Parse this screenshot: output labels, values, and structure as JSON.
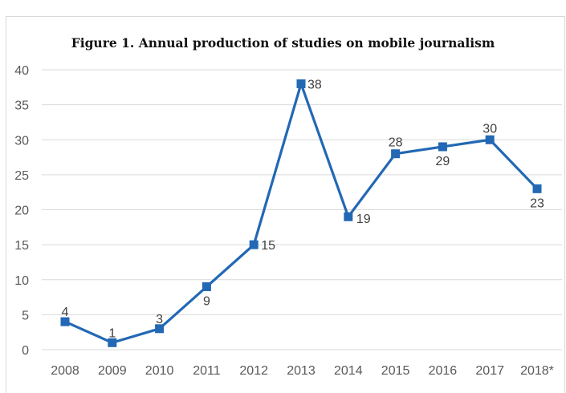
{
  "chart_data": {
    "type": "line",
    "title": "Figure 1. Annual production of studies on mobile journalism",
    "xlabel": "",
    "ylabel": "",
    "categories": [
      "2008",
      "2009",
      "2010",
      "2011",
      "2012",
      "2013",
      "2014",
      "2015",
      "2016",
      "2017",
      "2018*"
    ],
    "series": [
      {
        "values": [
          4,
          1,
          3,
          9,
          15,
          38,
          19,
          28,
          29,
          30,
          23
        ]
      }
    ],
    "ylim": [
      0,
      40
    ],
    "yticks": [
      0,
      5,
      10,
      15,
      20,
      25,
      30,
      35,
      40
    ],
    "grid": true,
    "legend": "none",
    "data_labels": true,
    "color": "#2268b4"
  }
}
